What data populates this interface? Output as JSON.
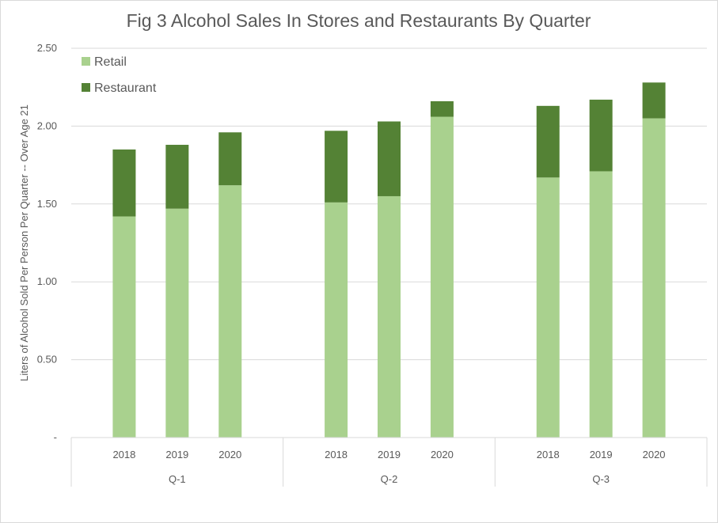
{
  "chart_data": {
    "type": "bar",
    "stacked": true,
    "title": "Fig 3 Alcohol Sales In Stores and Restaurants By Quarter",
    "ylabel": "Liters of Alcohol Sold Per Person Per Quarter -- Over Age 21",
    "xlabel": "",
    "ylim": [
      0,
      2.5
    ],
    "y_ticks": [
      "-",
      "0.50",
      "1.00",
      "1.50",
      "2.00",
      "2.50"
    ],
    "grid": true,
    "legend_position": "top-left",
    "groups": [
      {
        "label": "Q-1",
        "categories": [
          "2018",
          "2019",
          "2020"
        ]
      },
      {
        "label": "Q-2",
        "categories": [
          "2018",
          "2019",
          "2020"
        ]
      },
      {
        "label": "Q-3",
        "categories": [
          "2018",
          "2019",
          "2020"
        ]
      }
    ],
    "series": [
      {
        "name": "Retail",
        "color": "#a9d18e",
        "values": [
          1.42,
          1.47,
          1.62,
          1.51,
          1.55,
          2.06,
          1.67,
          1.71,
          2.05
        ]
      },
      {
        "name": "Restaurant",
        "color": "#548235",
        "values": [
          0.43,
          0.41,
          0.34,
          0.46,
          0.48,
          0.1,
          0.46,
          0.46,
          0.23
        ]
      }
    ]
  }
}
